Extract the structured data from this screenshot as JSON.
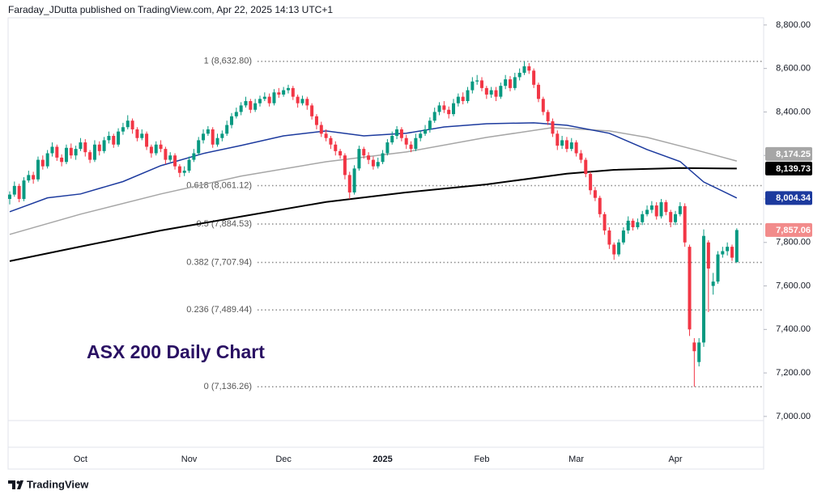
{
  "header": {
    "byline": "Faraday_JDutta published on TradingView.com, Apr 22, 2025 14:13 UTC+1",
    "brand": "TradingView"
  },
  "chart_data": {
    "type": "candlestick",
    "title": "ASX 200 Daily Chart",
    "categories": [
      null,
      null,
      null,
      null,
      null,
      null,
      null,
      null,
      null,
      null,
      null,
      null,
      null,
      null,
      null,
      "Oct",
      null,
      null,
      null,
      null,
      null,
      null,
      null,
      null,
      null,
      null,
      null,
      null,
      null,
      null,
      null,
      null,
      null,
      null,
      null,
      null,
      null,
      null,
      "Nov",
      null,
      null,
      null,
      null,
      null,
      null,
      null,
      null,
      null,
      null,
      null,
      null,
      null,
      null,
      null,
      null,
      null,
      null,
      null,
      "Dec",
      null,
      null,
      null,
      null,
      null,
      null,
      null,
      null,
      null,
      null,
      null,
      null,
      null,
      null,
      null,
      null,
      null,
      null,
      null,
      null,
      "2025",
      null,
      null,
      null,
      null,
      null,
      null,
      null,
      null,
      null,
      null,
      null,
      null,
      null,
      null,
      null,
      null,
      null,
      null,
      null,
      null,
      "Feb",
      null,
      null,
      null,
      null,
      null,
      null,
      null,
      null,
      null,
      null,
      null,
      null,
      null,
      null,
      null,
      null,
      null,
      null,
      null,
      "Mar",
      null,
      null,
      null,
      null,
      null,
      null,
      null,
      null,
      null,
      null,
      null,
      null,
      null,
      null,
      null,
      null,
      null,
      null,
      null,
      null,
      "Apr",
      null,
      null,
      null,
      null,
      null,
      null,
      null,
      null,
      null,
      null,
      null,
      null,
      null
    ],
    "open": [
      8000,
      8020,
      8060,
      8000,
      8085,
      8110,
      8090,
      8180,
      8150,
      8210,
      8240,
      8190,
      8170,
      8235,
      8200,
      8230,
      8260,
      8215,
      8180,
      8250,
      8220,
      8270,
      8290,
      8250,
      8310,
      8330,
      8360,
      8320,
      8280,
      8300,
      8240,
      8210,
      8250,
      8230,
      8180,
      8200,
      8150,
      8120,
      8130,
      8180,
      8210,
      8270,
      8300,
      8320,
      8250,
      8280,
      8300,
      8340,
      8380,
      8400,
      8430,
      8450,
      8410,
      8440,
      8460,
      8470,
      8440,
      8490,
      8480,
      8500,
      8510,
      8470,
      8440,
      8460,
      8430,
      8380,
      8340,
      8300,
      8280,
      8250,
      8220,
      8200,
      8110,
      8030,
      8140,
      8230,
      8200,
      8180,
      8150,
      8170,
      8210,
      8260,
      8290,
      8320,
      8280,
      8250,
      8230,
      8280,
      8300,
      8320,
      8360,
      8400,
      8430,
      8410,
      8390,
      8440,
      8470,
      8450,
      8500,
      8540,
      8545,
      8510,
      8480,
      8500,
      8470,
      8520,
      8550,
      8510,
      8560,
      8580,
      8610,
      8590,
      8525,
      8460,
      8400,
      8357,
      8300,
      8245,
      8270,
      8230,
      8260,
      8210,
      8180,
      8115,
      8040,
      8005,
      7930,
      7855,
      7790,
      7745,
      7800,
      7855,
      7900,
      7870,
      7893,
      7930,
      7950,
      7970,
      7920,
      7985,
      7940,
      7893,
      7930,
      7967,
      7780,
      7340,
      7250,
      7340,
      7800,
      7600,
      7620,
      7745,
      7760,
      7780,
      7710
    ],
    "high": [
      8035,
      8080,
      8070,
      8100,
      8130,
      8125,
      8195,
      8200,
      8225,
      8260,
      8250,
      8205,
      8250,
      8255,
      8245,
      8280,
      8275,
      8225,
      8270,
      8265,
      8285,
      8310,
      8300,
      8325,
      8350,
      8385,
      8370,
      8330,
      8320,
      8310,
      8250,
      8265,
      8270,
      8240,
      8215,
      8210,
      8160,
      8150,
      8195,
      8230,
      8285,
      8320,
      8335,
      8330,
      8300,
      8315,
      8360,
      8395,
      8420,
      8445,
      8470,
      8460,
      8460,
      8475,
      8490,
      8485,
      8505,
      8510,
      8515,
      8525,
      8520,
      8480,
      8475,
      8470,
      8440,
      8390,
      8355,
      8320,
      8290,
      8265,
      8230,
      8210,
      8125,
      8155,
      8245,
      8240,
      8215,
      8195,
      8190,
      8225,
      8275,
      8310,
      8335,
      8330,
      8295,
      8265,
      8300,
      8315,
      8340,
      8375,
      8420,
      8445,
      8450,
      8425,
      8460,
      8485,
      8490,
      8515,
      8560,
      8570,
      8560,
      8520,
      8515,
      8515,
      8535,
      8570,
      8565,
      8580,
      8600,
      8632.8,
      8625,
      8600,
      8535,
      8470,
      8410,
      8370,
      8315,
      8290,
      8285,
      8280,
      8270,
      8225,
      8190,
      8125,
      8055,
      8015,
      7940,
      7870,
      7800,
      7815,
      7870,
      7920,
      7910,
      7910,
      7945,
      7970,
      7990,
      7985,
      8000,
      7995,
      7950,
      7945,
      7985,
      7980,
      7790,
      7360,
      7360,
      7860,
      7810,
      7660,
      7760,
      7780,
      7800,
      7790,
      7865
    ],
    "low": [
      7975,
      8010,
      7985,
      7990,
      8075,
      8070,
      8080,
      8135,
      8140,
      8195,
      8175,
      8150,
      8160,
      8185,
      8180,
      8220,
      8195,
      8165,
      8170,
      8200,
      8210,
      8255,
      8235,
      8240,
      8295,
      8320,
      8300,
      8265,
      8270,
      8225,
      8190,
      8200,
      8215,
      8160,
      8170,
      8135,
      8100,
      8105,
      8120,
      8170,
      8200,
      8255,
      8290,
      8235,
      8240,
      8265,
      8290,
      8325,
      8370,
      8385,
      8420,
      8395,
      8400,
      8425,
      8450,
      8425,
      8430,
      8465,
      8470,
      8485,
      8455,
      8420,
      8430,
      8410,
      8365,
      8320,
      8285,
      8265,
      8230,
      8200,
      8185,
      8090,
      8000,
      8020,
      8130,
      8185,
      8160,
      8135,
      8140,
      8160,
      8200,
      8250,
      8275,
      8265,
      8230,
      8215,
      8220,
      8265,
      8290,
      8305,
      8350,
      8385,
      8395,
      8370,
      8380,
      8425,
      8435,
      8440,
      8485,
      8525,
      8495,
      8460,
      8465,
      8450,
      8460,
      8505,
      8495,
      8500,
      8545,
      8570,
      8575,
      8510,
      8445,
      8385,
      8340,
      8285,
      8225,
      8230,
      8215,
      8220,
      8195,
      8165,
      8100,
      8020,
      7990,
      7915,
      7835,
      7770,
      7720,
      7735,
      7790,
      7840,
      7855,
      7860,
      7880,
      7920,
      7935,
      7905,
      7910,
      7925,
      7870,
      7880,
      7920,
      7780,
      7370,
      7136.26,
      7230,
      7320,
      7480,
      7560,
      7610,
      7730,
      7740,
      7715,
      7705
    ],
    "close": [
      8020,
      8060,
      8000,
      8085,
      8110,
      8090,
      8180,
      8150,
      8210,
      8240,
      8190,
      8170,
      8235,
      8200,
      8230,
      8260,
      8215,
      8180,
      8250,
      8220,
      8270,
      8290,
      8250,
      8310,
      8330,
      8360,
      8320,
      8280,
      8300,
      8240,
      8210,
      8250,
      8230,
      8180,
      8200,
      8150,
      8120,
      8130,
      8180,
      8210,
      8270,
      8300,
      8320,
      8250,
      8280,
      8300,
      8340,
      8380,
      8400,
      8430,
      8450,
      8410,
      8440,
      8460,
      8470,
      8440,
      8490,
      8480,
      8500,
      8510,
      8470,
      8440,
      8460,
      8430,
      8380,
      8340,
      8300,
      8280,
      8250,
      8220,
      8200,
      8110,
      8030,
      8140,
      8230,
      8200,
      8180,
      8150,
      8170,
      8210,
      8260,
      8290,
      8320,
      8280,
      8250,
      8230,
      8280,
      8300,
      8320,
      8360,
      8400,
      8430,
      8410,
      8390,
      8440,
      8470,
      8450,
      8500,
      8540,
      8545,
      8510,
      8480,
      8500,
      8470,
      8520,
      8550,
      8510,
      8560,
      8580,
      8610,
      8590,
      8525,
      8460,
      8400,
      8357,
      8300,
      8245,
      8270,
      8230,
      8260,
      8210,
      8180,
      8115,
      8040,
      8005,
      7930,
      7855,
      7790,
      7745,
      7800,
      7855,
      7900,
      7870,
      7893,
      7930,
      7950,
      7970,
      7920,
      7985,
      7940,
      7893,
      7930,
      7967,
      7800,
      7400,
      7300,
      7340,
      7830,
      7680,
      7620,
      7745,
      7760,
      7780,
      7730,
      7857.06
    ],
    "close_label": "7,857.06",
    "close_label_color": "#f28b8b",
    "up_color": "#089981",
    "down_color": "#f23645",
    "ylim": [
      6981,
      8833
    ],
    "yticks": [
      {
        "value": 7000,
        "label": "7,000.00"
      },
      {
        "value": 7200,
        "label": "7,200.00"
      },
      {
        "value": 7400,
        "label": "7,400.00"
      },
      {
        "value": 7600,
        "label": "7,600.00"
      },
      {
        "value": 7800,
        "label": "7,800.00"
      },
      {
        "value": 8000,
        "label": "8,000.00"
      },
      {
        "value": 8200,
        "label": "8,200.00"
      },
      {
        "value": 8400,
        "label": "8,400.00"
      },
      {
        "value": 8600,
        "label": "8,600.00"
      },
      {
        "value": 8800,
        "label": "8,800.00"
      }
    ],
    "grid": false,
    "moving_averages": [
      {
        "color": "#a6a6a6",
        "x": [
          0,
          15,
          32,
          49,
          67,
          84,
          101,
          115,
          127,
          135,
          145,
          154
        ],
        "values": [
          7837,
          7930,
          8023,
          8105,
          8171,
          8216,
          8283,
          8328,
          8313,
          8283,
          8227,
          8174.25
        ],
        "last_label": "8,174.25"
      },
      {
        "color": "#000000",
        "x": [
          0,
          15,
          32,
          49,
          67,
          84,
          101,
          118,
          128,
          142,
          154
        ],
        "values": [
          7714,
          7781,
          7855,
          7919,
          7986,
          8030,
          8067,
          8116,
          8134,
          8142,
          8139.73
        ],
        "last_label": "8,139.73"
      },
      {
        "color": "#1c3a9e",
        "x": [
          0,
          8,
          15,
          24,
          32,
          41,
          49,
          58,
          67,
          75,
          84,
          92,
          101,
          111,
          118,
          127,
          135,
          142,
          147,
          154
        ],
        "values": [
          7941,
          8005,
          8023,
          8080,
          8153,
          8209,
          8246,
          8290,
          8313,
          8290,
          8302,
          8331,
          8346,
          8350,
          8339,
          8302,
          8227,
          8172,
          8078,
          8004.34
        ],
        "last_label": "8,004.34"
      }
    ],
    "fibonacci": [
      {
        "label": "1 (8,632.80)",
        "value": 8632.8
      },
      {
        "label": "0.618 (8,061.12)",
        "value": 8061.12
      },
      {
        "label": "0.5 (7,884.53)",
        "value": 7884.53
      },
      {
        "label": "0.382 (7,707.94)",
        "value": 7707.94
      },
      {
        "label": "0.236 (7,489.44)",
        "value": 7489.44
      },
      {
        "label": "0 (7,136.26)",
        "value": 7136.26
      }
    ]
  }
}
